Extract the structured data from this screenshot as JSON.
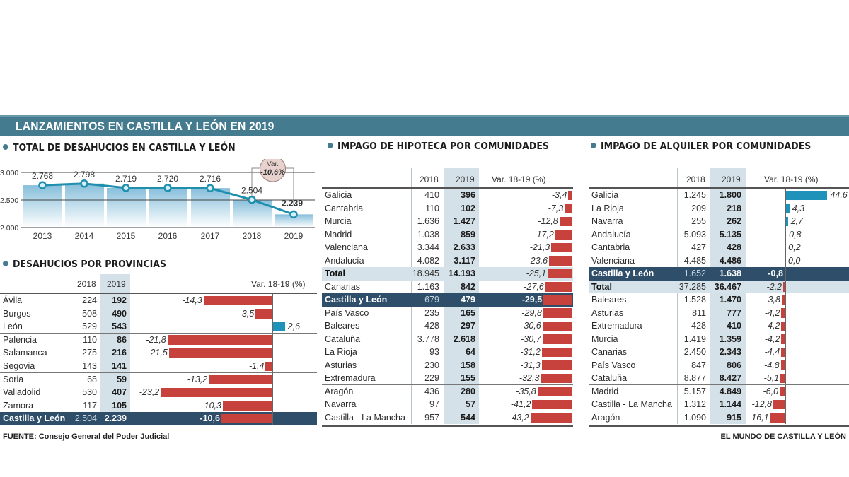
{
  "banner": {
    "title": "LANZAMIENTOS EN CASTILLA Y LEÓN EN 2019"
  },
  "colors": {
    "banner": "#457b8f",
    "negative": "#c8423d",
    "positive": "#1e92b8",
    "highlight": "#2e4e6a",
    "line": "#1e8fad"
  },
  "chart_data": [
    {
      "id": "total-desahucios",
      "type": "line",
      "title": "TOTAL DE DESAHUCIOS EN CASTILLA Y LEÓN",
      "x": [
        "2013",
        "2014",
        "2015",
        "2016",
        "2017",
        "2018",
        "2019"
      ],
      "values": [
        2768,
        2798,
        2719,
        2720,
        2716,
        2504,
        2239
      ],
      "value_labels": [
        "2.768",
        "2.798",
        "2.719",
        "2.720",
        "2.716",
        "2.504",
        "2.239"
      ],
      "yticks": [
        3000,
        2500,
        2000
      ],
      "ytick_labels": [
        "3.000",
        "2.500",
        "2.000"
      ],
      "ylim": [
        2000,
        3000
      ],
      "annotation": {
        "label": "Var.",
        "value": "-10,6%",
        "from": "2018",
        "to": "2019"
      }
    },
    {
      "id": "desahucios-provincias",
      "type": "table",
      "title": "DESAHUCIOS POR PROVINCIAS",
      "columns": [
        "",
        "2018",
        "2019",
        "Var. 18-19 (%)"
      ],
      "bar_range": [
        -23.2,
        2.6
      ],
      "rows": [
        {
          "name": "Ávila",
          "y2018": "224",
          "y2019": "192",
          "var": -14.3,
          "var_label": "-14,3"
        },
        {
          "name": "Burgos",
          "y2018": "508",
          "y2019": "490",
          "var": -3.5,
          "var_label": "-3,5"
        },
        {
          "name": "León",
          "y2018": "529",
          "y2019": "543",
          "var": 2.6,
          "var_label": "2,6"
        },
        {
          "name": "Palencia",
          "y2018": "110",
          "y2019": "86",
          "var": -21.8,
          "var_label": "-21,8"
        },
        {
          "name": "Salamanca",
          "y2018": "275",
          "y2019": "216",
          "var": -21.5,
          "var_label": "-21,5"
        },
        {
          "name": "Segovia",
          "y2018": "143",
          "y2019": "141",
          "var": -1.4,
          "var_label": "-1,4"
        },
        {
          "name": "Soria",
          "y2018": "68",
          "y2019": "59",
          "var": -13.2,
          "var_label": "-13,2"
        },
        {
          "name": "Valladolid",
          "y2018": "530",
          "y2019": "407",
          "var": -23.2,
          "var_label": "-23,2"
        },
        {
          "name": "Zamora",
          "y2018": "117",
          "y2019": "105",
          "var": -10.3,
          "var_label": "-10,3"
        },
        {
          "name": "Castilla y León",
          "y2018": "2.504",
          "y2019": "2.239",
          "var": -10.6,
          "var_label": "-10,6",
          "highlight": true
        }
      ]
    },
    {
      "id": "impago-hipoteca",
      "type": "table",
      "title": "IMPAGO DE HIPOTECA POR COMUNIDADES",
      "columns": [
        "",
        "2018",
        "2019",
        "Var. 18-19 (%)"
      ],
      "rows": [
        {
          "name": "Galicia",
          "y2018": "410",
          "y2019": "396",
          "var": -3.4,
          "var_label": "-3,4"
        },
        {
          "name": "Cantabria",
          "y2018": "110",
          "y2019": "102",
          "var": -7.3,
          "var_label": "-7,3"
        },
        {
          "name": "Murcia",
          "y2018": "1.636",
          "y2019": "1.427",
          "var": -12.8,
          "var_label": "-12,8"
        },
        {
          "name": "Madrid",
          "y2018": "1.038",
          "y2019": "859",
          "var": -17.2,
          "var_label": "-17,2"
        },
        {
          "name": "Valenciana",
          "y2018": "3.344",
          "y2019": "2.633",
          "var": -21.3,
          "var_label": "-21,3"
        },
        {
          "name": "Andalucía",
          "y2018": "4.082",
          "y2019": "3.117",
          "var": -23.6,
          "var_label": "-23,6"
        },
        {
          "name": "Total",
          "y2018": "18.945",
          "y2019": "14.193",
          "var": -25.1,
          "var_label": "-25,1",
          "total": true
        },
        {
          "name": "Canarias",
          "y2018": "1.163",
          "y2019": "842",
          "var": -27.6,
          "var_label": "-27,6"
        },
        {
          "name": "Castilla y León",
          "y2018": "679",
          "y2019": "479",
          "var": -29.5,
          "var_label": "-29,5",
          "highlight": true
        },
        {
          "name": "País Vasco",
          "y2018": "235",
          "y2019": "165",
          "var": -29.8,
          "var_label": "-29,8"
        },
        {
          "name": "Baleares",
          "y2018": "428",
          "y2019": "297",
          "var": -30.6,
          "var_label": "-30,6"
        },
        {
          "name": "Cataluña",
          "y2018": "3.778",
          "y2019": "2.618",
          "var": -30.7,
          "var_label": "-30,7"
        },
        {
          "name": "La Rioja",
          "y2018": "93",
          "y2019": "64",
          "var": -31.2,
          "var_label": "-31,2"
        },
        {
          "name": "Asturias",
          "y2018": "230",
          "y2019": "158",
          "var": -31.3,
          "var_label": "-31,3"
        },
        {
          "name": "Extremadura",
          "y2018": "229",
          "y2019": "155",
          "var": -32.3,
          "var_label": "-32,3"
        },
        {
          "name": "Aragón",
          "y2018": "436",
          "y2019": "280",
          "var": -35.8,
          "var_label": "-35,8"
        },
        {
          "name": "Navarra",
          "y2018": "97",
          "y2019": "57",
          "var": -41.2,
          "var_label": "-41,2"
        },
        {
          "name": "Castilla - La Mancha",
          "y2018": "957",
          "y2019": "544",
          "var": -43.2,
          "var_label": "-43,2"
        }
      ]
    },
    {
      "id": "impago-alquiler",
      "type": "table",
      "title": "IMPAGO DE ALQUILER POR COMUNIDADES",
      "columns": [
        "",
        "2018",
        "2019",
        "Var. 18-19 (%)"
      ],
      "rows": [
        {
          "name": "Galicia",
          "y2018": "1.245",
          "y2019": "1.800",
          "var": 44.6,
          "var_label": "44,6"
        },
        {
          "name": "La Rioja",
          "y2018": "209",
          "y2019": "218",
          "var": 4.3,
          "var_label": "4,3"
        },
        {
          "name": "Navarra",
          "y2018": "255",
          "y2019": "262",
          "var": 2.7,
          "var_label": "2,7"
        },
        {
          "name": "Andalucía",
          "y2018": "5.093",
          "y2019": "5.135",
          "var": 0.8,
          "var_label": "0,8"
        },
        {
          "name": "Cantabria",
          "y2018": "427",
          "y2019": "428",
          "var": 0.2,
          "var_label": "0,2"
        },
        {
          "name": "Valenciana",
          "y2018": "4.485",
          "y2019": "4.486",
          "var": 0.0,
          "var_label": "0,0"
        },
        {
          "name": "Castilla y León",
          "y2018": "1.652",
          "y2019": "1.638",
          "var": -0.8,
          "var_label": "-0,8",
          "highlight": true
        },
        {
          "name": "Total",
          "y2018": "37.285",
          "y2019": "36.467",
          "var": -2.2,
          "var_label": "-2,2",
          "total": true
        },
        {
          "name": "Baleares",
          "y2018": "1.528",
          "y2019": "1.470",
          "var": -3.8,
          "var_label": "-3,8"
        },
        {
          "name": "Asturias",
          "y2018": "811",
          "y2019": "777",
          "var": -4.2,
          "var_label": "-4,2"
        },
        {
          "name": "Extremadura",
          "y2018": "428",
          "y2019": "410",
          "var": -4.2,
          "var_label": "-4,2"
        },
        {
          "name": "Murcia",
          "y2018": "1.419",
          "y2019": "1.359",
          "var": -4.2,
          "var_label": "-4,2"
        },
        {
          "name": "Canarias",
          "y2018": "2.450",
          "y2019": "2.343",
          "var": -4.4,
          "var_label": "-4,4"
        },
        {
          "name": "País Vasco",
          "y2018": "847",
          "y2019": "806",
          "var": -4.8,
          "var_label": "-4,8"
        },
        {
          "name": "Cataluña",
          "y2018": "8.877",
          "y2019": "8.427",
          "var": -5.1,
          "var_label": "-5,1"
        },
        {
          "name": "Madrid",
          "y2018": "5.157",
          "y2019": "4.849",
          "var": -6.0,
          "var_label": "-6,0"
        },
        {
          "name": "Castilla - La Mancha",
          "y2018": "1.312",
          "y2019": "1.144",
          "var": -12.8,
          "var_label": "-12,8"
        },
        {
          "name": "Aragón",
          "y2018": "1.090",
          "y2019": "915",
          "var": -16.1,
          "var_label": "-16,1"
        }
      ]
    }
  ],
  "footer": {
    "source": "FUENTE: Consejo General del Poder Judicial",
    "credit": "EL MUNDO DE CASTILLA Y LEÓN"
  }
}
